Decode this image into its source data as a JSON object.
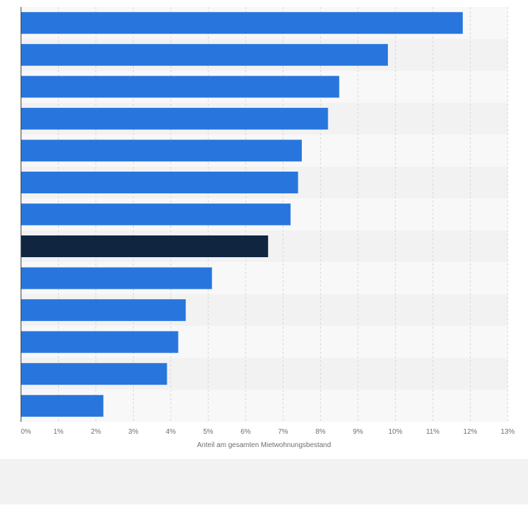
{
  "chart_data": {
    "type": "bar",
    "orientation": "horizontal",
    "title": "",
    "xlabel": "Anteil am gesamten Mietwohnungsbestand",
    "ylabel": "",
    "categories": [
      "",
      "",
      "",
      "",
      "",
      "",
      "",
      "",
      "",
      "",
      "",
      "",
      ""
    ],
    "values": [
      11.8,
      9.8,
      8.5,
      8.2,
      7.5,
      7.4,
      7.2,
      6.6,
      5.1,
      4.4,
      4.2,
      3.9,
      2.2
    ],
    "highlight_index": 7,
    "xlim": [
      0,
      13
    ],
    "x_ticks": [
      0,
      1,
      2,
      3,
      4,
      5,
      6,
      7,
      8,
      9,
      10,
      11,
      12,
      13
    ],
    "x_tick_labels": [
      "0%",
      "1%",
      "2%",
      "3%",
      "4%",
      "5%",
      "6%",
      "7%",
      "8%",
      "9%",
      "10%",
      "11%",
      "12%",
      "13%"
    ],
    "grid": true,
    "legend": "none",
    "colors": {
      "bar": "#2876dd",
      "highlight": "#0f2540",
      "band_light": "#f8f8f9",
      "band_dark": "#f2f2f3",
      "grid": "#d6d6d6",
      "axis": "#333333",
      "text": "#6e6e6e",
      "footer": "#f2f2f3"
    }
  }
}
